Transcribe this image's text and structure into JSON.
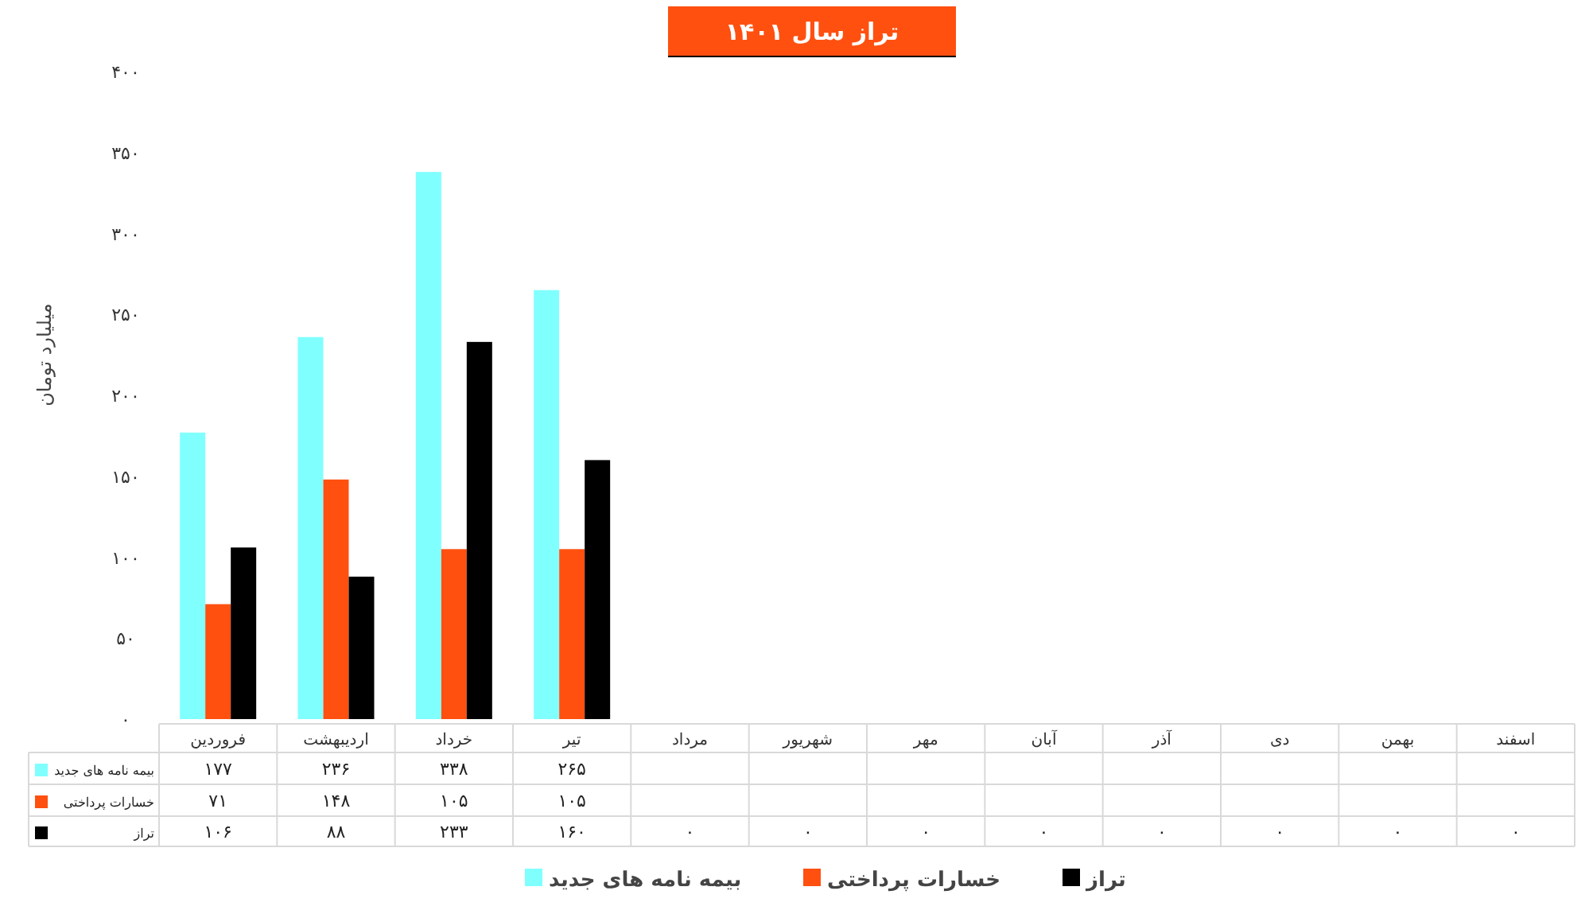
{
  "chart_data": {
    "type": "bar",
    "title": "تراز سال ۱۴۰۱",
    "ylabel": "میلیارد تومان",
    "categories": [
      "فروردین",
      "اردیبهشت",
      "خرداد",
      "تیر",
      "مرداد",
      "شهریور",
      "مهر",
      "آبان",
      "آذر",
      "دی",
      "بهمن",
      "اسفند"
    ],
    "series": [
      {
        "name": "بیمه نامه های جدید",
        "color": "#80ffff",
        "values": [
          177,
          236,
          338,
          265,
          null,
          null,
          null,
          null,
          null,
          null,
          null,
          null
        ],
        "value_labels": [
          "۱۷۷",
          "۲۳۶",
          "۳۳۸",
          "۲۶۵",
          null,
          null,
          null,
          null,
          null,
          null,
          null,
          null
        ]
      },
      {
        "name": "خسارات پرداختی",
        "color": "#ff5010",
        "values": [
          71,
          148,
          105,
          105,
          null,
          null,
          null,
          null,
          null,
          null,
          null,
          null
        ],
        "value_labels": [
          "۷۱",
          "۱۴۸",
          "۱۰۵",
          "۱۰۵",
          null,
          null,
          null,
          null,
          null,
          null,
          null,
          null
        ]
      },
      {
        "name": "تراز",
        "color": "#000000",
        "values": [
          106,
          88,
          233,
          160,
          0,
          0,
          0,
          0,
          0,
          0,
          0,
          0
        ],
        "value_labels": [
          "۱۰۶",
          "۸۸",
          "۲۳۳",
          "۱۶۰",
          "۰",
          "۰",
          "۰",
          "۰",
          "۰",
          "۰",
          "۰",
          "۰"
        ]
      }
    ],
    "ylim": [
      0,
      400
    ],
    "yticks": [
      {
        "value": 0,
        "label": "۰"
      },
      {
        "value": 50,
        "label": "۵۰"
      },
      {
        "value": 100,
        "label": "۱۰۰"
      },
      {
        "value": 150,
        "label": "۱۵۰"
      },
      {
        "value": 200,
        "label": "۲۰۰"
      },
      {
        "value": 250,
        "label": "۲۵۰"
      },
      {
        "value": 300,
        "label": "۳۰۰"
      },
      {
        "value": 350,
        "label": "۳۵۰"
      },
      {
        "value": 400,
        "label": "۴۰۰"
      }
    ],
    "grid": false,
    "legend": "bottom"
  }
}
